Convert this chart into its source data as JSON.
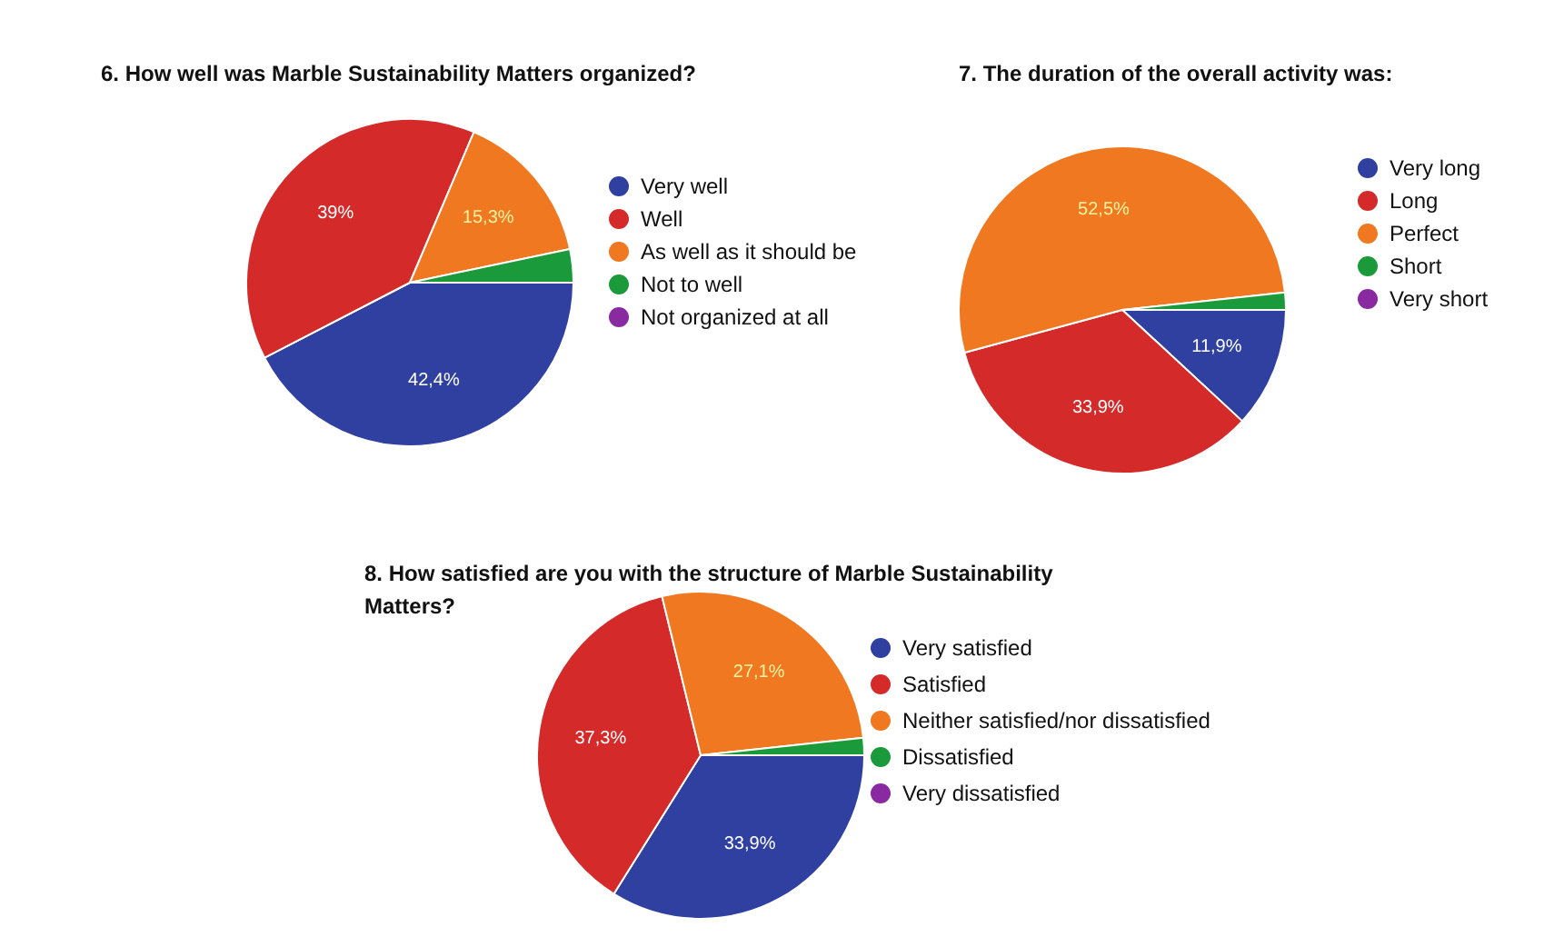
{
  "chart_data": [
    {
      "type": "pie",
      "title": "6. How well was Marble Sustainability Matters organized?",
      "categories": [
        "Very well",
        "Well",
        "As well as it should be",
        "Not to well",
        "Not organized at all"
      ],
      "values": [
        42.4,
        39,
        15.3,
        3.3,
        0
      ],
      "value_labels": [
        "42,4%",
        "39%",
        "15,3%",
        null,
        null
      ],
      "colors": [
        "#3040a0",
        "#d42a2a",
        "#f07820",
        "#1a9a3a",
        "#8a2aa0"
      ],
      "legend": "right"
    },
    {
      "type": "pie",
      "title": "7. The duration of the overall activity was:",
      "categories": [
        "Very long",
        "Long",
        "Perfect",
        "Short",
        "Very short"
      ],
      "values": [
        11.9,
        33.9,
        52.5,
        1.7,
        0
      ],
      "value_labels": [
        "11,9%",
        "33,9%",
        "52,5%",
        null,
        null
      ],
      "colors": [
        "#3040a0",
        "#d42a2a",
        "#f07820",
        "#1a9a3a",
        "#8a2aa0"
      ],
      "legend": "right"
    },
    {
      "type": "pie",
      "title": "8. How satisfied are you with the structure of Marble Sustainability Matters?",
      "categories": [
        "Very satisfied",
        "Satisfied",
        "Neither satisfied/nor dissatisfied",
        "Dissatisfied",
        "Very dissatisfied"
      ],
      "values": [
        33.9,
        37.3,
        27.1,
        1.7,
        0
      ],
      "value_labels": [
        "33,9%",
        "37,3%",
        "27,1%",
        null,
        null
      ],
      "colors": [
        "#3040a0",
        "#d42a2a",
        "#f07820",
        "#1a9a3a",
        "#8a2aa0"
      ],
      "legend": "right"
    }
  ]
}
